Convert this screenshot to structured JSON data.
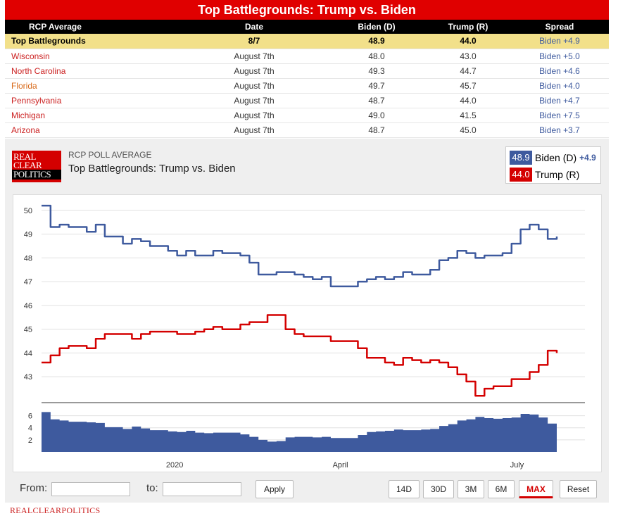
{
  "header": {
    "title": "Top Battlegrounds: Trump vs. Biden"
  },
  "table": {
    "columns": [
      "RCP Average",
      "Date",
      "Biden (D)",
      "Trump (R)",
      "Spread"
    ],
    "average": {
      "name": "Top Battlegrounds",
      "date": "8/7",
      "biden": "48.9",
      "trump": "44.0",
      "spread": "Biden +4.9"
    },
    "rows": [
      {
        "state": "Wisconsin",
        "date": "August 7th",
        "biden": "48.0",
        "trump": "43.0",
        "spread": "Biden +5.0"
      },
      {
        "state": "North Carolina",
        "date": "August 7th",
        "biden": "49.3",
        "trump": "44.7",
        "spread": "Biden +4.6"
      },
      {
        "state": "Florida",
        "date": "August 7th",
        "biden": "49.7",
        "trump": "45.7",
        "spread": "Biden +4.0"
      },
      {
        "state": "Pennsylvania",
        "date": "August 7th",
        "biden": "48.7",
        "trump": "44.0",
        "spread": "Biden +4.7"
      },
      {
        "state": "Michigan",
        "date": "August 7th",
        "biden": "49.0",
        "trump": "41.5",
        "spread": "Biden +7.5"
      },
      {
        "state": "Arizona",
        "date": "August 7th",
        "biden": "48.7",
        "trump": "45.0",
        "spread": "Biden +3.7"
      }
    ]
  },
  "panel": {
    "logo_lines": [
      "REAL",
      "CLEAR",
      "POLITICS"
    ],
    "label": "RCP POLL AVERAGE",
    "title": "Top Battlegrounds: Trump vs. Biden",
    "legend": {
      "biden": {
        "value": "48.9",
        "name": "Biden (D)",
        "spread": "+4.9",
        "color": "#3e5a9e"
      },
      "trump": {
        "value": "44.0",
        "name": "Trump (R)",
        "color": "#d40000"
      }
    }
  },
  "controls": {
    "from_label": "From:",
    "to_label": "to:",
    "apply": "Apply",
    "ranges": [
      "14D",
      "30D",
      "3M",
      "6M",
      "MAX"
    ],
    "selected_range": "MAX",
    "reset": "Reset"
  },
  "footer": {
    "brand": "REALCLEARPOLITICS"
  },
  "chart_data": {
    "type": "line",
    "x_ticks": [
      "2020",
      "April",
      "July"
    ],
    "ylim": [
      42,
      50.5
    ],
    "y_ticks": [
      43,
      44,
      45,
      46,
      47,
      48,
      49,
      50
    ],
    "spread_ylim": [
      0,
      7
    ],
    "spread_ticks": [
      2,
      4,
      6
    ],
    "grid": true,
    "series": [
      {
        "name": "Biden (D)",
        "color": "#3e5a9e",
        "values": [
          50.2,
          49.3,
          49.4,
          49.3,
          49.3,
          49.1,
          49.4,
          48.9,
          48.9,
          48.6,
          48.8,
          48.7,
          48.5,
          48.5,
          48.3,
          48.1,
          48.3,
          48.1,
          48.1,
          48.3,
          48.2,
          48.2,
          48.1,
          47.8,
          47.3,
          47.3,
          47.4,
          47.4,
          47.3,
          47.2,
          47.1,
          47.2,
          46.8,
          46.8,
          46.8,
          47.0,
          47.1,
          47.2,
          47.1,
          47.2,
          47.4,
          47.3,
          47.3,
          47.5,
          47.9,
          48.0,
          48.3,
          48.2,
          48.0,
          48.1,
          48.1,
          48.2,
          48.6,
          49.2,
          49.4,
          49.2,
          48.8,
          48.9
        ]
      },
      {
        "name": "Trump (R)",
        "color": "#d40000",
        "values": [
          43.6,
          43.9,
          44.2,
          44.3,
          44.3,
          44.2,
          44.6,
          44.8,
          44.8,
          44.8,
          44.6,
          44.8,
          44.9,
          44.9,
          44.9,
          44.8,
          44.8,
          44.9,
          45.0,
          45.1,
          45.0,
          45.0,
          45.2,
          45.3,
          45.3,
          45.6,
          45.6,
          45.0,
          44.8,
          44.7,
          44.7,
          44.7,
          44.5,
          44.5,
          44.5,
          44.2,
          43.8,
          43.8,
          43.6,
          43.5,
          43.8,
          43.7,
          43.6,
          43.7,
          43.6,
          43.4,
          43.1,
          42.8,
          42.2,
          42.5,
          42.6,
          42.6,
          42.9,
          42.9,
          43.2,
          43.5,
          44.1,
          44.0
        ]
      },
      {
        "name": "Spread",
        "values": [
          6.6,
          5.4,
          5.2,
          5.0,
          5.0,
          4.9,
          4.8,
          4.1,
          4.1,
          3.8,
          4.2,
          3.9,
          3.6,
          3.6,
          3.4,
          3.3,
          3.5,
          3.2,
          3.1,
          3.2,
          3.2,
          3.2,
          2.9,
          2.5,
          2.0,
          1.7,
          1.8,
          2.4,
          2.5,
          2.5,
          2.4,
          2.5,
          2.3,
          2.3,
          2.3,
          2.8,
          3.3,
          3.4,
          3.5,
          3.7,
          3.6,
          3.6,
          3.7,
          3.8,
          4.3,
          4.6,
          5.2,
          5.4,
          5.8,
          5.6,
          5.5,
          5.6,
          5.7,
          6.3,
          6.2,
          5.7,
          4.7,
          4.9
        ]
      }
    ]
  }
}
